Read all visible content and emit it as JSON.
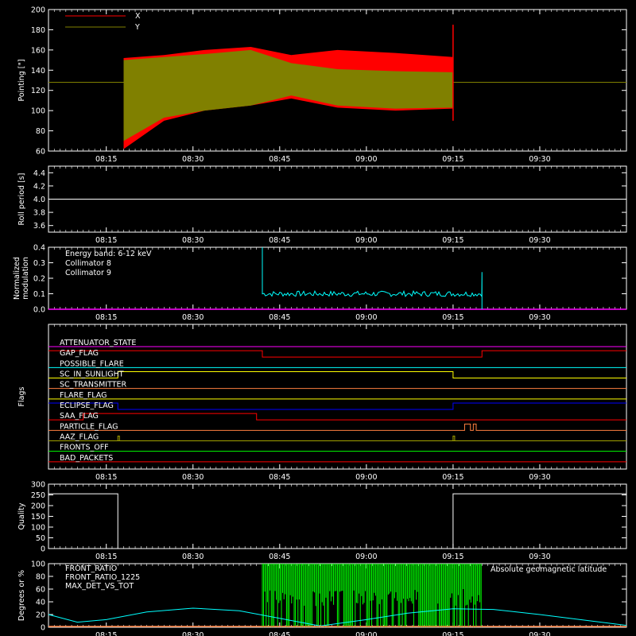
{
  "time_ticks": [
    "08:15",
    "08:30",
    "08:45",
    "09:00",
    "09:15",
    "09:30"
  ],
  "colors": {
    "x": "#ff0000",
    "y": "#808000",
    "white": "#ffffff",
    "cyan": "#00ffff",
    "magenta": "#ff00ff",
    "green": "#00ff00",
    "blue": "#0000ff",
    "yellow": "#ffff00",
    "orange": "#ff8040",
    "olive": "#a0a000",
    "red_orange": "#ff4020",
    "pink": "#ff2080"
  },
  "chart_data": [
    {
      "id": "pointing",
      "type": "area",
      "ylabel": "Pointing [\"]",
      "ylim": [
        60,
        200
      ],
      "yticks": [
        "60",
        "80",
        "100",
        "120",
        "140",
        "160",
        "180",
        "200"
      ],
      "legend": [
        "X",
        "Y"
      ],
      "constant_before_after": 128,
      "series": [
        {
          "name": "X",
          "x": [
            "08:18",
            "08:25",
            "08:32",
            "08:40",
            "08:47",
            "08:55",
            "09:05",
            "09:15"
          ],
          "upper": [
            152,
            155,
            160,
            163,
            155,
            160,
            157,
            153
          ],
          "lower": [
            62,
            90,
            100,
            105,
            112,
            103,
            100,
            102
          ]
        },
        {
          "name": "Y",
          "x": [
            "08:18",
            "08:25",
            "08:32",
            "08:40",
            "08:47",
            "08:55",
            "09:05",
            "09:15"
          ],
          "upper": [
            150,
            153,
            156,
            160,
            147,
            141,
            139,
            138
          ],
          "lower": [
            70,
            93,
            100,
            105,
            115,
            105,
            102,
            103
          ]
        }
      ],
      "spike_x": "09:15",
      "spike_range": [
        90,
        185
      ]
    },
    {
      "id": "roll",
      "type": "line",
      "ylabel": "Roll period [s]",
      "ylim": [
        3.5,
        4.5
      ],
      "yticks": [
        "3.6",
        "3.8",
        "4.0",
        "4.2",
        "4.4"
      ],
      "value": 4.0
    },
    {
      "id": "modulation",
      "type": "line",
      "ylabel": "Normalized modulation",
      "ylim": [
        0,
        0.4
      ],
      "yticks": [
        "0.0",
        "0.1",
        "0.2",
        "0.3",
        "0.4"
      ],
      "legend": [
        "Energy band: 6-12 keV",
        "Collimator 8",
        "Collimator 9"
      ],
      "series": [
        {
          "name": "Collimator 8",
          "x_start": "08:42",
          "x_end": "09:20",
          "level": 0.1,
          "spike_start": 0.4,
          "spike_end": 0.24
        },
        {
          "name": "Collimator 9",
          "level": 0.0
        }
      ]
    },
    {
      "id": "flags",
      "type": "line",
      "ylabel": "Flags",
      "flags": [
        {
          "name": "ATTENUATOR_STATE",
          "color_key": "magenta",
          "segments": [
            [
              "08:05",
              "09:45",
              0
            ]
          ]
        },
        {
          "name": "GAP_FLAG",
          "color_key": "x",
          "segments": [
            [
              "08:05",
              "08:42",
              1
            ],
            [
              "08:42",
              "09:20",
              0
            ],
            [
              "09:20",
              "09:45",
              1
            ]
          ]
        },
        {
          "name": "POSSIBLE_FLARE",
          "color_key": "cyan",
          "segments": [
            [
              "08:05",
              "09:45",
              0
            ]
          ]
        },
        {
          "name": "SC_IN_SUNLIGHT",
          "color_key": "yellow",
          "segments": [
            [
              "08:05",
              "08:17",
              0
            ],
            [
              "08:17",
              "09:15",
              1
            ],
            [
              "09:15",
              "09:45",
              0
            ]
          ]
        },
        {
          "name": "SC_TRANSMITTER",
          "color_key": "orange",
          "segments": [
            [
              "08:05",
              "09:45",
              0
            ]
          ]
        },
        {
          "name": "FLARE_FLAG",
          "color_key": "yellow",
          "segments": [
            [
              "08:05",
              "09:45",
              0
            ]
          ]
        },
        {
          "name": "ECLIPSE_FLAG",
          "color_key": "blue",
          "segments": [
            [
              "08:05",
              "08:17",
              1
            ],
            [
              "08:17",
              "09:15",
              0
            ],
            [
              "09:15",
              "09:45",
              1
            ]
          ]
        },
        {
          "name": "SAA_FLAG",
          "color_key": "x",
          "segments": [
            [
              "08:05",
              "08:11",
              0
            ],
            [
              "08:11",
              "08:41",
              1
            ],
            [
              "08:41",
              "09:45",
              0
            ]
          ]
        },
        {
          "name": "PARTICLE_FLAG",
          "color_key": "orange",
          "segments": [
            [
              "08:05",
              "09:17",
              0
            ],
            [
              "09:17",
              "09:18",
              1
            ],
            [
              "09:18",
              "09:18.5",
              0
            ],
            [
              "09:18.5",
              "09:19",
              1
            ],
            [
              "09:19",
              "09:45",
              0
            ]
          ]
        },
        {
          "name": "AAZ_FLAG",
          "color_key": "olive",
          "segments": [
            [
              "08:05",
              "09:45",
              0
            ]
          ],
          "pulses": [
            "08:17",
            "09:15"
          ]
        },
        {
          "name": "FRONTS_OFF",
          "color_key": "green",
          "segments": [
            [
              "08:05",
              "09:45",
              0
            ]
          ]
        },
        {
          "name": "BAD_PACKETS",
          "color_key": "x",
          "segments": [
            [
              "08:05",
              "09:45",
              0
            ]
          ]
        }
      ]
    },
    {
      "id": "quality",
      "type": "line",
      "ylabel": "Quality",
      "ylim": [
        0,
        300
      ],
      "yticks": [
        "0",
        "50",
        "100",
        "150",
        "200",
        "250",
        "300"
      ],
      "x": [
        "08:05",
        "08:17",
        "08:17",
        "09:15",
        "09:15",
        "09:45"
      ],
      "values": [
        255,
        255,
        0,
        0,
        255,
        255
      ]
    },
    {
      "id": "ratios",
      "type": "line",
      "ylabel": "Degrees or %",
      "ylim": [
        0,
        100
      ],
      "yticks": [
        "0",
        "20",
        "40",
        "60",
        "80",
        "100"
      ],
      "legend": [
        "FRONT_RATIO",
        "FRONT_RATIO_1225",
        "MAX_DET_VS_TOT",
        "Absolute geomagnetic latitude"
      ],
      "series": [
        {
          "name": "FRONT_RATIO_1225",
          "x_start": "08:42",
          "x_end": "09:20",
          "values": [
            0,
            100
          ]
        },
        {
          "name": "Absolute geomagnetic latitude",
          "x": [
            "08:05",
            "08:10",
            "08:15",
            "08:22",
            "08:30",
            "08:38",
            "08:45",
            "08:52",
            "09:00",
            "09:07",
            "09:15",
            "09:22",
            "09:30",
            "09:37",
            "09:45"
          ],
          "values": [
            20,
            8,
            12,
            24,
            30,
            26,
            14,
            2,
            12,
            22,
            29,
            28,
            20,
            12,
            3
          ]
        }
      ]
    }
  ]
}
